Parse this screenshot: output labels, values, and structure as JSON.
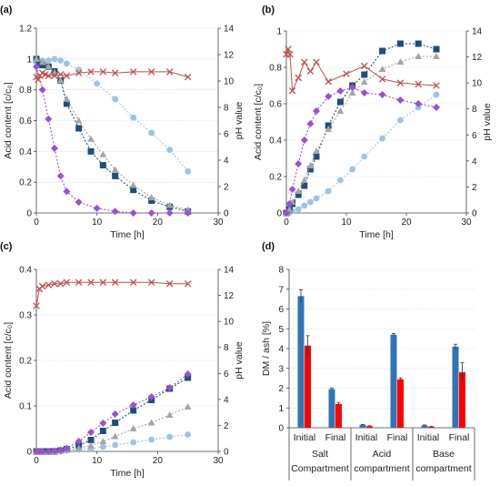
{
  "chart_data": [
    {
      "panel": "(a)",
      "type": "line",
      "xlabel": "Time [h]",
      "ylabel": "Acid content [c/c₀]",
      "y2label": "pH value",
      "xlim": [
        0,
        30
      ],
      "xticks": [
        0,
        10,
        20,
        30
      ],
      "ylim": [
        0,
        1.2
      ],
      "yticks": [
        0,
        0.2,
        0.4,
        0.6,
        0.8,
        1.0,
        1.2
      ],
      "y2lim": [
        0,
        14
      ],
      "y2ticks": [
        0,
        2,
        4,
        6,
        8,
        10,
        12,
        14
      ],
      "series": [
        {
          "marker": "circle",
          "color": "#9dc3e6",
          "axis": "left",
          "x": [
            0,
            0.5,
            1,
            2,
            3,
            4,
            5,
            7,
            10,
            13,
            16,
            19,
            22,
            25
          ],
          "y": [
            0.98,
            0.98,
            0.99,
            0.99,
            1.0,
            0.99,
            0.97,
            0.93,
            0.84,
            0.74,
            0.62,
            0.52,
            0.41,
            0.27
          ]
        },
        {
          "marker": "square",
          "color": "#1f4e79",
          "axis": "left",
          "x": [
            0,
            0.5,
            1,
            2,
            3,
            4,
            5,
            7,
            9,
            11,
            13,
            16,
            19,
            22,
            25
          ],
          "y": [
            1.0,
            0.97,
            0.96,
            0.95,
            0.92,
            0.86,
            0.71,
            0.55,
            0.4,
            0.31,
            0.24,
            0.15,
            0.08,
            0.04,
            0.01
          ]
        },
        {
          "marker": "triangle",
          "color": "#a5a5a5",
          "axis": "left",
          "x": [
            0,
            1,
            2,
            3,
            4,
            5,
            7,
            9,
            11,
            13,
            16,
            19,
            22,
            25
          ],
          "y": [
            1.0,
            0.98,
            0.95,
            0.91,
            0.86,
            0.74,
            0.6,
            0.48,
            0.38,
            0.28,
            0.18,
            0.1,
            0.05,
            0.02
          ]
        },
        {
          "marker": "diamond",
          "color": "#9b4fd6",
          "axis": "left",
          "x": [
            0,
            1,
            2,
            3,
            4,
            5,
            7,
            10,
            13,
            16,
            19,
            22,
            25
          ],
          "y": [
            0.95,
            0.8,
            0.61,
            0.42,
            0.24,
            0.14,
            0.07,
            0.03,
            0.01,
            0.0,
            0.0,
            0.0,
            0.0
          ]
        },
        {
          "marker": "x",
          "color": "#c0504d",
          "axis": "right",
          "x": [
            0,
            0.3,
            0.6,
            1,
            1.5,
            2,
            3,
            4,
            5,
            7,
            9,
            11,
            13,
            16,
            19,
            22,
            25
          ],
          "y": [
            10.3,
            10.1,
            10.4,
            10.6,
            10.5,
            10.4,
            10.4,
            10.5,
            10.4,
            10.6,
            10.7,
            10.7,
            10.6,
            10.7,
            10.7,
            10.7,
            10.3
          ]
        }
      ]
    },
    {
      "panel": "(b)",
      "type": "line",
      "xlabel": "Time [h]",
      "ylabel": "Acid content [c/c₀]",
      "y2label": "pH value",
      "xlim": [
        0,
        30
      ],
      "xticks": [
        0,
        10,
        20,
        30
      ],
      "ylim": [
        0,
        1.0
      ],
      "yticks": [
        0,
        0.2,
        0.4,
        0.6,
        0.8,
        1.0
      ],
      "y2lim": [
        0,
        14
      ],
      "y2ticks": [
        0,
        2,
        4,
        6,
        8,
        10,
        12,
        14
      ],
      "series": [
        {
          "marker": "circle",
          "color": "#9dc3e6",
          "axis": "left",
          "x": [
            0,
            0.5,
            1,
            2,
            3,
            4,
            5,
            7,
            9,
            11,
            13,
            16,
            19,
            22,
            25
          ],
          "y": [
            0.0,
            0.0,
            0.01,
            0.02,
            0.04,
            0.06,
            0.08,
            0.12,
            0.18,
            0.24,
            0.31,
            0.41,
            0.51,
            0.58,
            0.65
          ]
        },
        {
          "marker": "square",
          "color": "#1f4e79",
          "axis": "left",
          "x": [
            0,
            0.5,
            1,
            2,
            3,
            4,
            5,
            7,
            9,
            11,
            13,
            16,
            19,
            22,
            25
          ],
          "y": [
            0.0,
            0.02,
            0.05,
            0.1,
            0.15,
            0.24,
            0.31,
            0.48,
            0.61,
            0.7,
            0.76,
            0.89,
            0.93,
            0.93,
            0.9
          ]
        },
        {
          "marker": "triangle",
          "color": "#a5a5a5",
          "axis": "left",
          "x": [
            0,
            0.5,
            1,
            2,
            3,
            4,
            5,
            7,
            9,
            11,
            13,
            16,
            19,
            22,
            25
          ],
          "y": [
            0.0,
            0.02,
            0.06,
            0.12,
            0.18,
            0.26,
            0.34,
            0.46,
            0.56,
            0.66,
            0.72,
            0.79,
            0.83,
            0.86,
            0.86
          ]
        },
        {
          "marker": "diamond",
          "color": "#9b4fd6",
          "axis": "left",
          "x": [
            0,
            0.5,
            1,
            2,
            3,
            4,
            5,
            7,
            9,
            11,
            13,
            16,
            19,
            22,
            25
          ],
          "y": [
            0.0,
            0.05,
            0.13,
            0.27,
            0.4,
            0.49,
            0.56,
            0.64,
            0.67,
            0.69,
            0.66,
            0.65,
            0.62,
            0.6,
            0.58
          ]
        },
        {
          "marker": "x",
          "color": "#c0504d",
          "axis": "right",
          "x": [
            0,
            0.3,
            0.6,
            1,
            2,
            3,
            4,
            5,
            7,
            10,
            13,
            16,
            19,
            22,
            25
          ],
          "y": [
            12.2,
            12.6,
            12.2,
            9.4,
            10.4,
            11.6,
            10.9,
            11.6,
            10.1,
            10.7,
            11.3,
            10.3,
            10.0,
            9.9,
            9.8
          ]
        }
      ]
    },
    {
      "panel": "(c)",
      "type": "line",
      "xlabel": "Time [h]",
      "ylabel": "Acid content [c/c₀]",
      "y2label": "pH value",
      "xlim": [
        0,
        30
      ],
      "xticks": [
        0,
        10,
        20,
        30
      ],
      "ylim": [
        0,
        0.4
      ],
      "yticks": [
        0,
        0.1,
        0.2,
        0.3,
        0.4
      ],
      "y2lim": [
        0,
        14
      ],
      "y2ticks": [
        0,
        2,
        4,
        6,
        8,
        10,
        12,
        14
      ],
      "series": [
        {
          "marker": "circle",
          "color": "#9dc3e6",
          "axis": "left",
          "x": [
            0,
            0.5,
            1,
            2,
            3,
            4,
            5,
            7,
            9,
            11,
            13,
            16,
            19,
            22,
            25
          ],
          "y": [
            0.0,
            0.0,
            0.0,
            0.0,
            0.0,
            0.0,
            0.002,
            0.004,
            0.006,
            0.01,
            0.014,
            0.02,
            0.026,
            0.032,
            0.037
          ]
        },
        {
          "marker": "square",
          "color": "#1f4e79",
          "axis": "left",
          "x": [
            0,
            0.5,
            1,
            2,
            3,
            4,
            5,
            7,
            9,
            11,
            13,
            16,
            19,
            22,
            25
          ],
          "y": [
            0.0,
            0.0,
            0.0,
            0.0,
            0.0,
            0.002,
            0.005,
            0.013,
            0.025,
            0.045,
            0.063,
            0.09,
            0.113,
            0.138,
            0.162
          ]
        },
        {
          "marker": "triangle",
          "color": "#a5a5a5",
          "axis": "left",
          "x": [
            0,
            0.5,
            1,
            2,
            3,
            4,
            5,
            7,
            9,
            11,
            13,
            16,
            19,
            22,
            25
          ],
          "y": [
            0.0,
            0.0,
            0.0,
            0.0,
            0.0,
            0.001,
            0.003,
            0.007,
            0.013,
            0.022,
            0.033,
            0.05,
            0.063,
            0.08,
            0.098
          ]
        },
        {
          "marker": "diamond",
          "color": "#9b4fd6",
          "axis": "left",
          "x": [
            0,
            0.5,
            1,
            2,
            3,
            4,
            5,
            7,
            9,
            11,
            13,
            16,
            19,
            22,
            25
          ],
          "y": [
            0.0,
            0.0,
            0.0,
            0.0,
            0.001,
            0.003,
            0.007,
            0.022,
            0.042,
            0.062,
            0.082,
            0.102,
            0.12,
            0.14,
            0.17
          ]
        },
        {
          "marker": "x",
          "color": "#c0504d",
          "axis": "right",
          "x": [
            0,
            0.5,
            1,
            2,
            3,
            4,
            5,
            7,
            9,
            11,
            13,
            16,
            19,
            22,
            25
          ],
          "y": [
            11.2,
            12.5,
            12.7,
            12.8,
            12.9,
            12.9,
            13.0,
            13.0,
            13.0,
            13.0,
            13.0,
            13.0,
            13.0,
            12.9,
            12.9
          ]
        }
      ]
    },
    {
      "panel": "(d)",
      "type": "bar",
      "ylabel": "DM / ash [%]",
      "ylim": [
        0,
        8
      ],
      "yticks": [
        0,
        1,
        2,
        3,
        4,
        5,
        6,
        7,
        8
      ],
      "groups": [
        {
          "label": [
            "Salt",
            "Compartment"
          ],
          "categories": [
            "Initial",
            "Final"
          ]
        },
        {
          "label": [
            "Acid",
            "compartment"
          ],
          "categories": [
            "Initial",
            "Final"
          ]
        },
        {
          "label": [
            "Base",
            "compartment"
          ],
          "categories": [
            "Initial",
            "Final"
          ]
        }
      ],
      "series": [
        {
          "color": "#2e75b6",
          "values": [
            6.65,
            1.95,
            0.15,
            4.7,
            0.12,
            4.1
          ],
          "errors": [
            0.32,
            0.06,
            0.02,
            0.06,
            0.02,
            0.12
          ]
        },
        {
          "color": "#ff0000",
          "values": [
            4.15,
            1.2,
            0.08,
            2.45,
            0.05,
            2.8
          ],
          "errors": [
            0.5,
            0.08,
            0.02,
            0.07,
            0.02,
            0.48
          ]
        }
      ]
    }
  ]
}
